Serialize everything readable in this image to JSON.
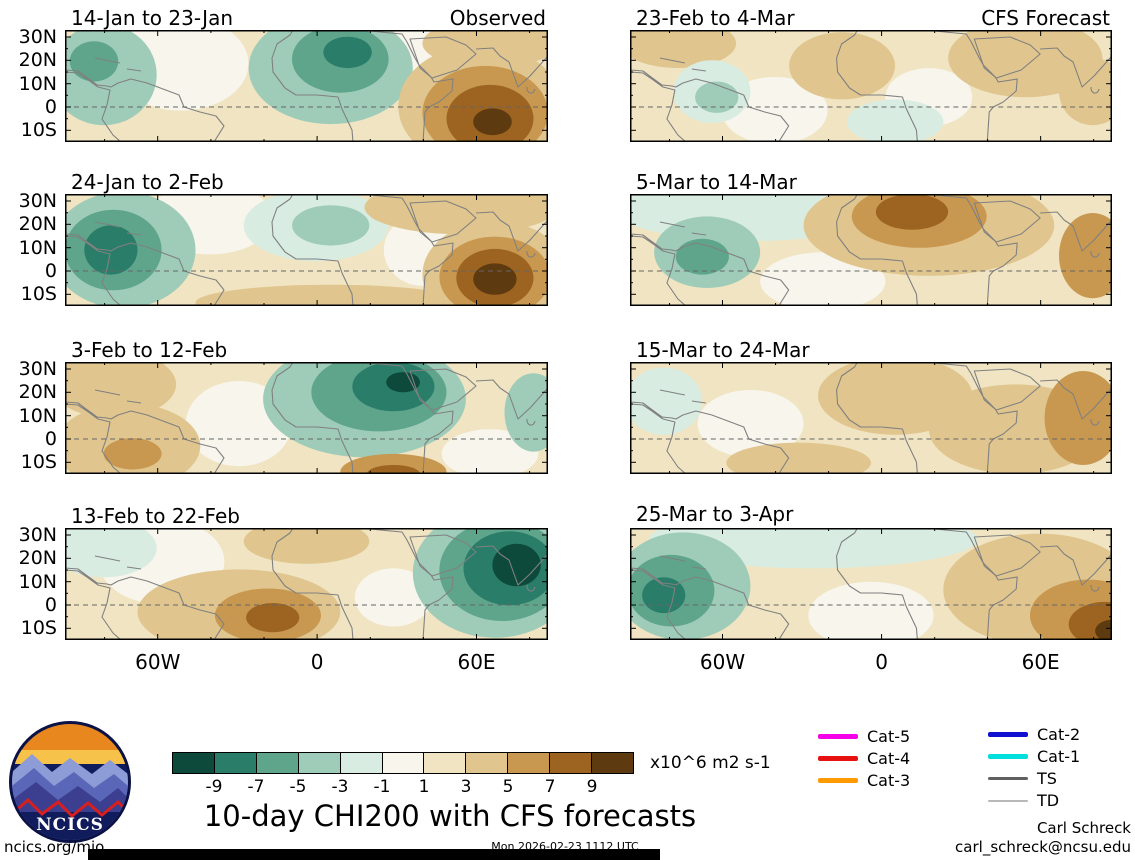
{
  "logo": {
    "text": "NCICS"
  },
  "legend": {
    "col1": [
      {
        "label": "Cat-5",
        "color": "#f500e9",
        "weight": 5
      },
      {
        "label": "Cat-4",
        "color": "#e81111",
        "weight": 5
      },
      {
        "label": "Cat-3",
        "color": "#ff9a00",
        "weight": 5
      }
    ],
    "col2": [
      {
        "label": "Cat-2",
        "color": "#1010d0",
        "weight": 5
      },
      {
        "label": "Cat-1",
        "color": "#00dede",
        "weight": 5
      },
      {
        "label": "TS",
        "color": "#606060",
        "weight": 3
      },
      {
        "label": "TD",
        "color": "#b8b8b8",
        "weight": 2
      }
    ]
  },
  "footer": {
    "left": "ncics.org/mjo",
    "center": "Mon 2026-02-23 1112 UTC",
    "credit": "Carl Schreck",
    "email": "carl_schreck@ncsu.edu"
  },
  "chart_data": {
    "type": "heatmap",
    "title": "10-day CHI200 with CFS forecasts",
    "units": "x10^6 m2 s-1",
    "colorbar_levels": [
      -9,
      -7,
      -5,
      -3,
      -1,
      1,
      3,
      5,
      7,
      9
    ],
    "colorbar_colors": [
      "#0d4a3c",
      "#2a7d68",
      "#5ea58c",
      "#9fccb8",
      "#d8ece2",
      "#f7f5ec",
      "#f0e4c2",
      "#e0c68e",
      "#c89850",
      "#9c6420",
      "#5e3a10"
    ],
    "level_colors": {
      "-9": "#0d4a3c",
      "-7": "#2a7d68",
      "-5": "#5ea58c",
      "-3": "#9fccb8",
      "-1": "#d8ece2",
      "0": "#f7f5ec",
      "1": "#f0e4c2",
      "3": "#e0c68e",
      "5": "#c89850",
      "7": "#9c6420",
      "9": "#5e3a10"
    },
    "lat_ticks": [
      "30N",
      "20N",
      "10N",
      "0",
      "10S"
    ],
    "lon_ticks": [
      "60W",
      "0",
      "60E"
    ],
    "panels": [
      {
        "title": "14-Jan to 23-Jan",
        "subtitle": "Observed",
        "base_level": 1,
        "features": [
          {
            "x": 0.24,
            "y": 0.3,
            "rx": 0.14,
            "ry": 0.42,
            "level": 0
          },
          {
            "x": 0.73,
            "y": 0.18,
            "rx": 0.06,
            "ry": 0.26,
            "level": 0
          },
          {
            "x": 0.08,
            "y": 0.4,
            "rx": 0.11,
            "ry": 0.45,
            "level": -3
          },
          {
            "x": 0.06,
            "y": 0.28,
            "rx": 0.05,
            "ry": 0.18,
            "level": -5
          },
          {
            "x": 0.55,
            "y": 0.34,
            "rx": 0.17,
            "ry": 0.5,
            "level": -3
          },
          {
            "x": 0.57,
            "y": 0.26,
            "rx": 0.1,
            "ry": 0.3,
            "level": -5
          },
          {
            "x": 0.585,
            "y": 0.2,
            "rx": 0.05,
            "ry": 0.14,
            "level": -7
          },
          {
            "x": 0.88,
            "y": 0.12,
            "rx": 0.14,
            "ry": 0.22,
            "level": 3
          },
          {
            "x": 0.86,
            "y": 0.68,
            "rx": 0.17,
            "ry": 0.55,
            "level": 3
          },
          {
            "x": 0.87,
            "y": 0.74,
            "rx": 0.13,
            "ry": 0.42,
            "level": 5
          },
          {
            "x": 0.88,
            "y": 0.79,
            "rx": 0.09,
            "ry": 0.3,
            "level": 7
          },
          {
            "x": 0.885,
            "y": 0.82,
            "rx": 0.04,
            "ry": 0.12,
            "level": 9
          }
        ]
      },
      {
        "title": "24-Jan to 2-Feb",
        "base_level": 1,
        "features": [
          {
            "x": 0.3,
            "y": 0.22,
            "rx": 0.13,
            "ry": 0.32,
            "level": 0
          },
          {
            "x": 0.74,
            "y": 0.5,
            "rx": 0.08,
            "ry": 0.32,
            "level": 0
          },
          {
            "x": 0.12,
            "y": 0.5,
            "rx": 0.15,
            "ry": 0.52,
            "level": -3
          },
          {
            "x": 0.1,
            "y": 0.5,
            "rx": 0.1,
            "ry": 0.36,
            "level": -5
          },
          {
            "x": 0.095,
            "y": 0.5,
            "rx": 0.055,
            "ry": 0.22,
            "level": -7
          },
          {
            "x": 0.52,
            "y": 0.28,
            "rx": 0.15,
            "ry": 0.32,
            "level": -1
          },
          {
            "x": 0.55,
            "y": 0.28,
            "rx": 0.08,
            "ry": 0.18,
            "level": -3
          },
          {
            "x": 0.82,
            "y": 0.12,
            "rx": 0.2,
            "ry": 0.24,
            "level": 3
          },
          {
            "x": 0.55,
            "y": 0.97,
            "rx": 0.28,
            "ry": 0.16,
            "level": 3
          },
          {
            "x": 0.89,
            "y": 0.72,
            "rx": 0.15,
            "ry": 0.48,
            "level": 3
          },
          {
            "x": 0.89,
            "y": 0.74,
            "rx": 0.115,
            "ry": 0.36,
            "level": 5
          },
          {
            "x": 0.89,
            "y": 0.75,
            "rx": 0.08,
            "ry": 0.26,
            "level": 7
          },
          {
            "x": 0.89,
            "y": 0.76,
            "rx": 0.045,
            "ry": 0.14,
            "level": 9
          }
        ]
      },
      {
        "title": "3-Feb to 12-Feb",
        "base_level": 1,
        "features": [
          {
            "x": 0.36,
            "y": 0.55,
            "rx": 0.11,
            "ry": 0.38,
            "level": 0
          },
          {
            "x": 0.88,
            "y": 0.82,
            "rx": 0.1,
            "ry": 0.22,
            "level": 0
          },
          {
            "x": 0.1,
            "y": 0.2,
            "rx": 0.13,
            "ry": 0.3,
            "level": 3
          },
          {
            "x": 0.13,
            "y": 0.75,
            "rx": 0.15,
            "ry": 0.38,
            "level": 3
          },
          {
            "x": 0.14,
            "y": 0.82,
            "rx": 0.06,
            "ry": 0.14,
            "level": 5
          },
          {
            "x": 0.62,
            "y": 0.33,
            "rx": 0.21,
            "ry": 0.52,
            "level": -3
          },
          {
            "x": 0.65,
            "y": 0.27,
            "rx": 0.14,
            "ry": 0.35,
            "level": -5
          },
          {
            "x": 0.68,
            "y": 0.22,
            "rx": 0.085,
            "ry": 0.22,
            "level": -7
          },
          {
            "x": 0.7,
            "y": 0.18,
            "rx": 0.035,
            "ry": 0.09,
            "level": -9
          },
          {
            "x": 0.97,
            "y": 0.45,
            "rx": 0.06,
            "ry": 0.35,
            "level": -3
          },
          {
            "x": 0.68,
            "y": 0.98,
            "rx": 0.11,
            "ry": 0.16,
            "level": 5
          },
          {
            "x": 0.68,
            "y": 1.0,
            "rx": 0.055,
            "ry": 0.08,
            "level": 7
          }
        ]
      },
      {
        "title": "13-Feb to 22-Feb",
        "base_level": 1,
        "features": [
          {
            "x": 0.2,
            "y": 0.3,
            "rx": 0.13,
            "ry": 0.38,
            "level": 0
          },
          {
            "x": 0.68,
            "y": 0.62,
            "rx": 0.08,
            "ry": 0.26,
            "level": 0
          },
          {
            "x": 0.08,
            "y": 0.18,
            "rx": 0.11,
            "ry": 0.26,
            "level": -1
          },
          {
            "x": 0.5,
            "y": 0.12,
            "rx": 0.13,
            "ry": 0.2,
            "level": 3
          },
          {
            "x": 0.36,
            "y": 0.75,
            "rx": 0.21,
            "ry": 0.38,
            "level": 3
          },
          {
            "x": 0.42,
            "y": 0.78,
            "rx": 0.11,
            "ry": 0.24,
            "level": 5
          },
          {
            "x": 0.43,
            "y": 0.8,
            "rx": 0.055,
            "ry": 0.13,
            "level": 7
          },
          {
            "x": 0.89,
            "y": 0.4,
            "rx": 0.17,
            "ry": 0.58,
            "level": -3
          },
          {
            "x": 0.905,
            "y": 0.38,
            "rx": 0.13,
            "ry": 0.45,
            "level": -5
          },
          {
            "x": 0.92,
            "y": 0.36,
            "rx": 0.095,
            "ry": 0.33,
            "level": -7
          },
          {
            "x": 0.935,
            "y": 0.33,
            "rx": 0.05,
            "ry": 0.19,
            "level": -9
          }
        ]
      },
      {
        "title": "23-Feb to 4-Mar",
        "subtitle": "CFS Forecast",
        "base_level": 1,
        "features": [
          {
            "x": 0.3,
            "y": 0.72,
            "rx": 0.11,
            "ry": 0.3,
            "level": 0
          },
          {
            "x": 0.62,
            "y": 0.6,
            "rx": 0.09,
            "ry": 0.26,
            "level": 0
          },
          {
            "x": 0.1,
            "y": 0.12,
            "rx": 0.12,
            "ry": 0.22,
            "level": 3
          },
          {
            "x": 0.44,
            "y": 0.32,
            "rx": 0.11,
            "ry": 0.3,
            "level": 3
          },
          {
            "x": 0.82,
            "y": 0.25,
            "rx": 0.16,
            "ry": 0.35,
            "level": 3
          },
          {
            "x": 0.96,
            "y": 0.55,
            "rx": 0.07,
            "ry": 0.3,
            "level": 3
          },
          {
            "x": 0.17,
            "y": 0.55,
            "rx": 0.08,
            "ry": 0.28,
            "level": -1
          },
          {
            "x": 0.18,
            "y": 0.6,
            "rx": 0.045,
            "ry": 0.14,
            "level": -3
          },
          {
            "x": 0.55,
            "y": 0.82,
            "rx": 0.1,
            "ry": 0.2,
            "level": -1
          }
        ]
      },
      {
        "title": "5-Mar to 14-Mar",
        "base_level": 1,
        "features": [
          {
            "x": 0.4,
            "y": 0.78,
            "rx": 0.13,
            "ry": 0.26,
            "level": 0
          },
          {
            "x": 0.25,
            "y": 0.14,
            "rx": 0.28,
            "ry": 0.28,
            "level": -1
          },
          {
            "x": 0.16,
            "y": 0.52,
            "rx": 0.11,
            "ry": 0.32,
            "level": -3
          },
          {
            "x": 0.15,
            "y": 0.56,
            "rx": 0.055,
            "ry": 0.16,
            "level": -5
          },
          {
            "x": 0.62,
            "y": 0.28,
            "rx": 0.26,
            "ry": 0.45,
            "level": 3
          },
          {
            "x": 0.6,
            "y": 0.2,
            "rx": 0.14,
            "ry": 0.28,
            "level": 5
          },
          {
            "x": 0.585,
            "y": 0.16,
            "rx": 0.075,
            "ry": 0.16,
            "level": 7
          },
          {
            "x": 0.96,
            "y": 0.55,
            "rx": 0.07,
            "ry": 0.38,
            "level": 5
          }
        ]
      },
      {
        "title": "15-Mar to 24-Mar",
        "base_level": 1,
        "features": [
          {
            "x": 0.25,
            "y": 0.55,
            "rx": 0.11,
            "ry": 0.3,
            "level": 0
          },
          {
            "x": 0.55,
            "y": 0.3,
            "rx": 0.16,
            "ry": 0.35,
            "level": 3
          },
          {
            "x": 0.8,
            "y": 0.6,
            "rx": 0.18,
            "ry": 0.4,
            "level": 3
          },
          {
            "x": 0.94,
            "y": 0.5,
            "rx": 0.08,
            "ry": 0.42,
            "level": 5
          },
          {
            "x": 0.07,
            "y": 0.35,
            "rx": 0.08,
            "ry": 0.3,
            "level": -1
          },
          {
            "x": 0.35,
            "y": 0.9,
            "rx": 0.15,
            "ry": 0.18,
            "level": 3
          }
        ]
      },
      {
        "title": "25-Mar to 3-Apr",
        "base_level": 1,
        "features": [
          {
            "x": 0.5,
            "y": 0.78,
            "rx": 0.13,
            "ry": 0.3,
            "level": 0
          },
          {
            "x": 0.38,
            "y": 0.1,
            "rx": 0.34,
            "ry": 0.26,
            "level": -1
          },
          {
            "x": 0.11,
            "y": 0.52,
            "rx": 0.14,
            "ry": 0.48,
            "level": -3
          },
          {
            "x": 0.085,
            "y": 0.56,
            "rx": 0.09,
            "ry": 0.32,
            "level": -5
          },
          {
            "x": 0.07,
            "y": 0.6,
            "rx": 0.045,
            "ry": 0.16,
            "level": -7
          },
          {
            "x": 0.85,
            "y": 0.55,
            "rx": 0.2,
            "ry": 0.5,
            "level": 3
          },
          {
            "x": 0.95,
            "y": 0.78,
            "rx": 0.12,
            "ry": 0.32,
            "level": 5
          },
          {
            "x": 0.985,
            "y": 0.86,
            "rx": 0.075,
            "ry": 0.2,
            "level": 7
          },
          {
            "x": 1.0,
            "y": 0.92,
            "rx": 0.035,
            "ry": 0.1,
            "level": 9
          }
        ]
      }
    ]
  }
}
